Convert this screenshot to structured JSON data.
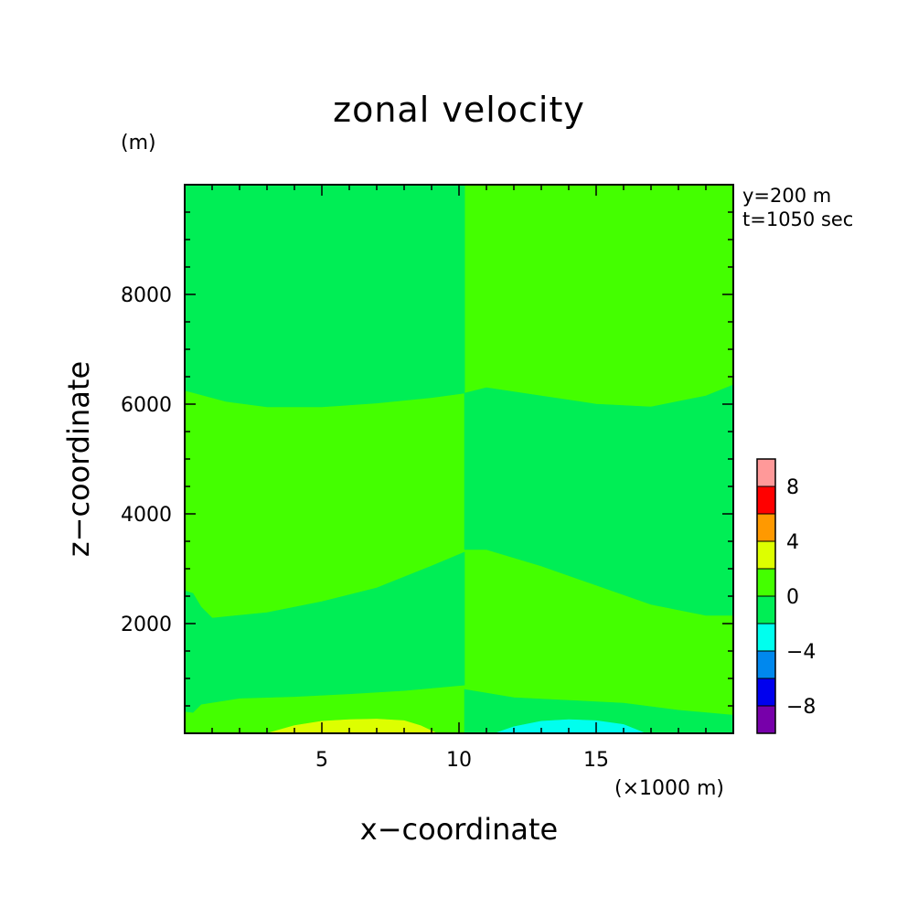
{
  "chart_data": {
    "type": "heatmap",
    "title": "zonal velocity",
    "xlabel": "x−coordinate",
    "ylabel": "z−coordinate",
    "y_unit": "(m)",
    "x_unit": "(×1000 m)",
    "annotations": [
      "y=200 m",
      "t=1050 sec"
    ],
    "xlim": [
      0,
      20
    ],
    "ylim": [
      0,
      10000
    ],
    "x_ticks": [
      5,
      10,
      15
    ],
    "y_ticks": [
      2000,
      4000,
      6000,
      8000
    ],
    "y_tick_labels": [
      "2000",
      "4000",
      "6000",
      "8000"
    ],
    "grid": false,
    "colorbar": {
      "levels": [
        -10,
        -8,
        -6,
        -4,
        -2,
        0,
        2,
        4,
        6,
        8,
        10
      ],
      "tick_values": [
        8,
        4,
        0,
        -4,
        -8
      ],
      "tick_labels": [
        "8",
        "4",
        "0",
        "−4",
        "−8"
      ],
      "colors": [
        "#7700aa",
        "#0000ee",
        "#0088ee",
        "#00ffee",
        "#00ee55",
        "#44ff00",
        "#ddff00",
        "#ff9900",
        "#ff0000",
        "#ff9999"
      ]
    },
    "contour_bands": [
      {
        "name": "0 to 2 upper left",
        "level": "0-2",
        "color": "#00ee55",
        "x": [
          0,
          0,
          10.2,
          10.2,
          8,
          5,
          3,
          1.5,
          0
        ],
        "y": [
          10000,
          6250,
          6250,
          10000,
          10000,
          10000,
          10000,
          10000,
          10000
        ]
      },
      {
        "name": "upper left lower boundary",
        "level": "0-2",
        "color": "#00ee55",
        "x": [
          0,
          1.5,
          3,
          5,
          7,
          9,
          10.2,
          10.2,
          0
        ],
        "y": [
          6250,
          6050,
          5950,
          5950,
          6020,
          6120,
          6200,
          10000,
          10000
        ]
      },
      {
        "name": "0 to 2 lower left band",
        "level": "0-2",
        "color": "#00ee55",
        "x": [
          0,
          0.3,
          0.6,
          1,
          3,
          5,
          7,
          9,
          10.2,
          10.2,
          8,
          6,
          4,
          2,
          0.6,
          0.3,
          0,
          0
        ],
        "y": [
          2600,
          2550,
          2300,
          2100,
          2200,
          2400,
          2650,
          3050,
          3300,
          880,
          780,
          720,
          670,
          640,
          530,
          380,
          400,
          2600
        ]
      },
      {
        "name": "0 to 2 right middle band",
        "level": "0-2",
        "color": "#00ee55",
        "x": [
          10.2,
          11,
          13,
          15,
          17,
          19,
          20,
          20,
          19,
          17,
          15,
          13,
          11,
          10.2
        ],
        "y": [
          6200,
          6300,
          6150,
          6000,
          5950,
          6150,
          6350,
          2150,
          2150,
          2350,
          2700,
          3050,
          3350,
          3350
        ]
      },
      {
        "name": "0 to 2 right bottom band",
        "level": "0-2",
        "color": "#00ee55",
        "x": [
          10.2,
          12,
          14,
          16,
          18,
          20,
          20,
          10.2
        ],
        "y": [
          800,
          650,
          600,
          550,
          420,
          330,
          0,
          0
        ]
      },
      {
        "name": "2 to 4 bottom left",
        "level": "2-4",
        "color": "#ddff00",
        "x": [
          3,
          4,
          5,
          6,
          7,
          8,
          8.6,
          9.2,
          3
        ],
        "y": [
          0,
          140,
          220,
          250,
          260,
          230,
          140,
          0,
          0
        ]
      },
      {
        "name": "-2 to -4 bottom right",
        "level": "-4 to -2",
        "color": "#00ffee",
        "x": [
          11.3,
          12,
          13,
          14,
          15,
          16,
          16.8,
          11.3
        ],
        "y": [
          0,
          120,
          220,
          250,
          230,
          160,
          0,
          0
        ]
      }
    ]
  }
}
